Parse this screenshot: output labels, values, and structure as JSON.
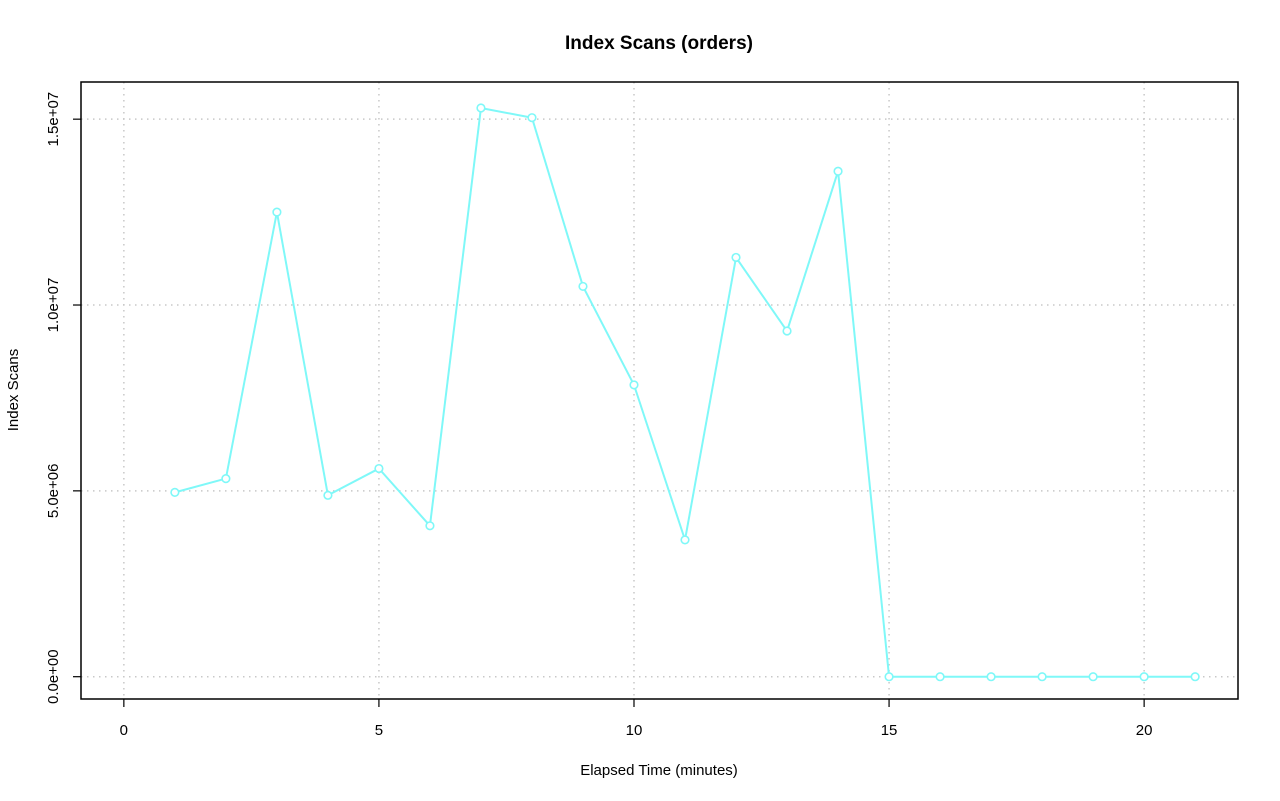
{
  "chart_data": {
    "type": "line",
    "title": "Index Scans (orders)",
    "xlabel": "Elapsed Time (minutes)",
    "ylabel": "Index Scans",
    "xlim": [
      -0.84,
      21.84
    ],
    "ylim": [
      -600000,
      16000000
    ],
    "x_ticks": [
      0,
      5,
      10,
      15,
      20
    ],
    "x_tick_labels": [
      "0",
      "5",
      "10",
      "15",
      "20"
    ],
    "y_ticks": [
      0,
      5000000,
      10000000,
      15000000
    ],
    "y_tick_labels": [
      "0.0e+00",
      "5.0e+06",
      "1.0e+07",
      "1.5e+07"
    ],
    "grid": true,
    "line_color": "#7ff8f8",
    "marker": "open-circle",
    "x": [
      1,
      2,
      3,
      4,
      5,
      6,
      7,
      8,
      9,
      10,
      11,
      12,
      13,
      14,
      15,
      16,
      17,
      18,
      19,
      20,
      21
    ],
    "values": [
      4960000,
      5330000,
      12500000,
      4880000,
      5600000,
      4060000,
      15300000,
      15040000,
      10500000,
      7850000,
      3680000,
      11280000,
      9300000,
      13600000,
      0,
      0,
      0,
      0,
      0,
      0,
      0
    ]
  }
}
